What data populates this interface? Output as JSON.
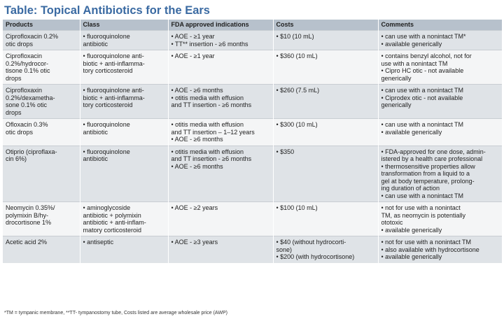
{
  "title": "Table: Topical Antibiotics for the Ears",
  "columns": [
    "Products",
    "Class",
    "FDA approved indications",
    "Costs",
    "Comments"
  ],
  "rows": [
    {
      "product": [
        "Ciprofloxacin 0.2%",
        "otic drops"
      ],
      "class": [
        "• fluoroquinolone",
        "antibiotic"
      ],
      "indications": [
        "• AOE - ≥1 year",
        "• TT** insertion - ≥6 months"
      ],
      "costs": [
        "• $10 (10 mL)"
      ],
      "comments": [
        "• can use with a nonintact TM*",
        "• available generically"
      ]
    },
    {
      "product": [
        "Ciprofloxacin",
        "0.2%/hydrocor-",
        "tisone 0.1% otic",
        "drops"
      ],
      "class": [
        "• fluoroquinolone anti-",
        "biotic + anti-inflamma-",
        "tory corticosteroid"
      ],
      "indications": [
        "• AOE - ≥1 year"
      ],
      "costs": [
        "• $360 (10 mL)"
      ],
      "comments": [
        "• contains benzyl alcohol, not for",
        "use with a nonintact TM",
        "• Cipro HC otic - not available",
        "generically"
      ]
    },
    {
      "product": [
        "Ciprofloxaxin",
        "0.2%/dexametha-",
        "sone 0.1% otic",
        "drops"
      ],
      "class": [
        "• fluoroquinolone anti-",
        "biotic + anti-inflamma-",
        "tory corticosteroid"
      ],
      "indications": [
        "• AOE - ≥6 months",
        "• otitis media with effusion",
        "and TT insertion - ≥6 months"
      ],
      "costs": [
        "• $260 (7.5 mL)"
      ],
      "comments": [
        "• can use with a nonintact TM",
        "• Ciprodex otic - not available",
        "generically"
      ]
    },
    {
      "product": [
        "Ofloxacin 0.3%",
        "otic drops"
      ],
      "class": [
        "• fluoroquinolone",
        "antibiotic"
      ],
      "indications": [
        "• otitis media with effusion",
        "and TT insertion – 1–12 years",
        "• AOE - ≥6 months"
      ],
      "costs": [
        "• $300 (10 mL)"
      ],
      "comments": [
        "• can use with a nonintact TM",
        "• available generically"
      ]
    },
    {
      "product": [
        "Otiprio (ciproflaxa-",
        "cin 6%)"
      ],
      "class": [
        "• fluoroquinolone",
        "antibiotic"
      ],
      "indications": [
        "• otitis media with effusion",
        "and TT insertion - ≥6 months",
        "• AOE - ≥6 months"
      ],
      "costs": [
        "• $350"
      ],
      "comments": [
        "• FDA-approved for one dose, admin-",
        "istered by a health care professional",
        "• thermosensitive properties allow",
        "transformation from a liquid to a",
        "gel at body temperature, prolong-",
        "ing duration of action",
        "• can use with a nonintact TM"
      ]
    },
    {
      "product": [
        "Neomycin 0.35%/",
        "polymixin B/hy-",
        "drocortisone 1%"
      ],
      "class": [
        "• aminoglycoside",
        "antibiotic + polymixin",
        "antibiotic + anti-inflam-",
        "matory corticosteroid"
      ],
      "indications": [
        "• AOE - ≥2 years"
      ],
      "costs": [
        "• $100 (10 mL)"
      ],
      "comments": [
        "• not for use with a nonintact",
        "TM, as neomycin is potentially",
        "ototoxic",
        "• available generically"
      ]
    },
    {
      "product": [
        "Acetic acid 2%"
      ],
      "class": [
        "• antiseptic"
      ],
      "indications": [
        "• AOE - ≥3 years"
      ],
      "costs": [
        "• $40 (without hydrocorti-",
        "sone)",
        "• $200 (with hydrocortisone)"
      ],
      "comments": [
        "• not for use with a nonintact TM",
        "• also available with hydrocortisone",
        "• available generically"
      ]
    }
  ],
  "footnote": "*TM = tympanic membrane, **TT- tympanostomy tube, Costs listed are average wholesale price (AWP)"
}
